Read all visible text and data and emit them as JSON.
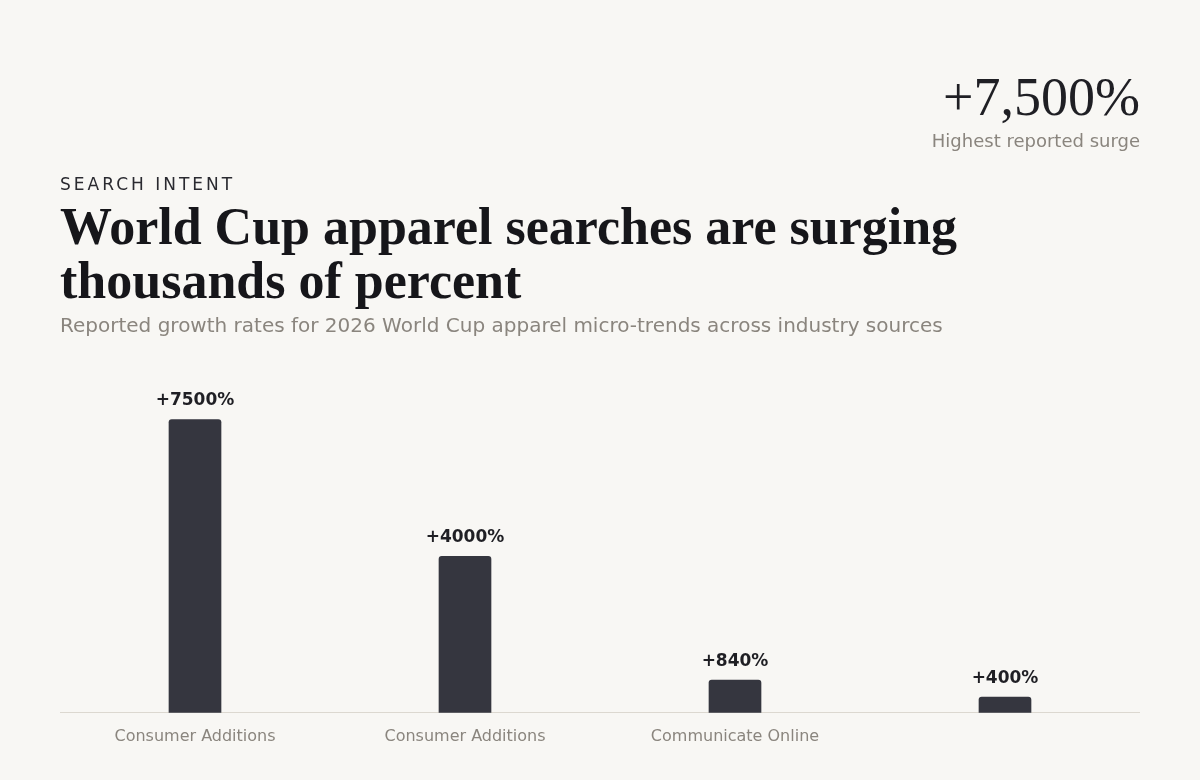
{
  "chart_data": {
    "type": "bar",
    "title": "World Cup apparel searches are surging thousands of percent",
    "subtitle": "Reported growth rates for 2026 World Cup apparel micro-trends across industry sources",
    "annotations": [
      "SEARCH INTENT",
      "+7,500%",
      "Highest reported surge"
    ],
    "categories": [
      "Consumer Additions",
      "Consumer Additions",
      "Communicate Online",
      null
    ],
    "values": [
      7500,
      4000,
      840,
      400
    ],
    "value_labels": [
      "+7500%",
      "+4000%",
      "+840%",
      "+400%"
    ],
    "color": "#35363f",
    "grid": false,
    "legend": false
  }
}
